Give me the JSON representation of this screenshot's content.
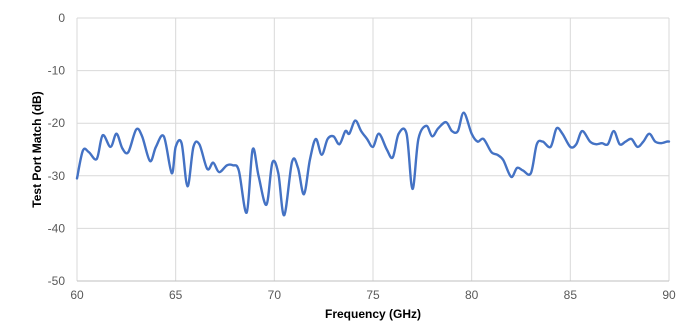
{
  "chart_data": {
    "type": "line",
    "title": "",
    "xlabel": "Frequency (GHz)",
    "ylabel": "Test Port Match (dB)",
    "xlim": [
      60,
      90
    ],
    "ylim": [
      -50,
      0
    ],
    "x_ticks": [
      "60",
      "65",
      "70",
      "75",
      "80",
      "85",
      "90"
    ],
    "y_ticks": [
      "0",
      "-10",
      "-20",
      "-30",
      "-40",
      "-50"
    ],
    "grid": true,
    "legend": "none",
    "series_color": "#4472C4",
    "grid_color": "#d9d9d9",
    "series": [
      {
        "x": [
          60.0,
          60.3,
          60.6,
          61.0,
          61.3,
          61.7,
          62.0,
          62.3,
          62.6,
          63.0,
          63.3,
          63.7,
          64.0,
          64.4,
          64.8,
          65.0,
          65.3,
          65.6,
          65.9,
          66.2,
          66.6,
          66.9,
          67.2,
          67.6,
          67.9,
          68.2,
          68.6,
          68.9,
          69.2,
          69.6,
          69.9,
          70.2,
          70.5,
          70.9,
          71.2,
          71.5,
          71.8,
          72.1,
          72.4,
          72.7,
          73.0,
          73.3,
          73.6,
          73.8,
          74.1,
          74.4,
          74.7,
          75.0,
          75.3,
          75.7,
          76.0,
          76.3,
          76.7,
          77.0,
          77.3,
          77.7,
          78.0,
          78.3,
          78.7,
          79.0,
          79.3,
          79.6,
          80.0,
          80.3,
          80.6,
          81.0,
          81.3,
          81.6,
          82.0,
          82.3,
          82.6,
          83.0,
          83.3,
          83.6,
          84.0,
          84.3,
          84.6,
          85.0,
          85.3,
          85.6,
          86.0,
          86.3,
          86.6,
          86.9,
          87.2,
          87.5,
          87.8,
          88.1,
          88.4,
          88.7,
          89.0,
          89.3,
          89.6,
          89.9,
          90.0
        ],
        "y": [
          -30.5,
          -25.2,
          -25.5,
          -26.8,
          -22.3,
          -24.5,
          -22.0,
          -24.8,
          -25.5,
          -21.2,
          -22.5,
          -27.2,
          -24.5,
          -22.5,
          -29.5,
          -24.5,
          -23.8,
          -32.0,
          -24.5,
          -24.0,
          -28.7,
          -27.5,
          -29.3,
          -28.0,
          -28.0,
          -29.0,
          -37.0,
          -25.0,
          -30.0,
          -35.5,
          -27.5,
          -29.5,
          -37.5,
          -27.3,
          -28.5,
          -33.5,
          -27.0,
          -23.0,
          -26.0,
          -23.0,
          -22.5,
          -24.0,
          -21.5,
          -22.0,
          -19.5,
          -21.5,
          -23.0,
          -24.5,
          -22.0,
          -25.0,
          -26.5,
          -22.0,
          -22.0,
          -32.5,
          -23.0,
          -20.5,
          -22.5,
          -21.0,
          -19.8,
          -21.5,
          -21.5,
          -18.0,
          -22.0,
          -23.5,
          -23.0,
          -25.5,
          -26.0,
          -27.0,
          -30.2,
          -28.5,
          -29.0,
          -29.5,
          -24.0,
          -23.5,
          -24.5,
          -21.0,
          -22.0,
          -24.5,
          -24.0,
          -21.5,
          -23.5,
          -24.0,
          -23.8,
          -24.0,
          -21.5,
          -24.0,
          -23.5,
          -23.0,
          -24.5,
          -23.5,
          -22.0,
          -23.5,
          -23.8,
          -23.5,
          -23.5
        ]
      }
    ]
  }
}
